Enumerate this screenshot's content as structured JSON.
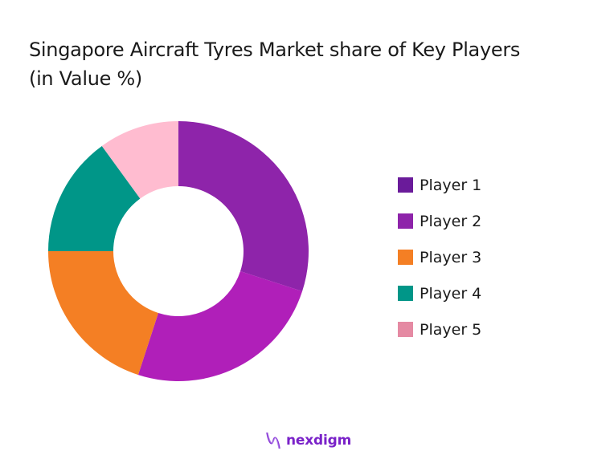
{
  "chart_data": {
    "type": "pie",
    "subtype": "donut",
    "title": "Singapore Aircraft Tyres Market share of Key Players",
    "subtitle": "(in Value %)",
    "categories": [
      "Player 1",
      "Player 2",
      "Player 3",
      "Player 4",
      "Player 5"
    ],
    "values": [
      30,
      25,
      20,
      15,
      10
    ],
    "colors": [
      "#8e24aa",
      "#b01fb9",
      "#f47f24",
      "#009688",
      "#ffbcd0"
    ],
    "legend_colors": [
      "#6a1b9a",
      "#8e24aa",
      "#f47f24",
      "#009688",
      "#e58aa3"
    ],
    "legend_position": "right",
    "start_angle_deg": 0,
    "direction": "clockwise"
  },
  "title": {
    "line1": "Singapore Aircraft Tyres Market share of Key Players",
    "line2": "(in Value %)"
  },
  "legend": {
    "items": [
      {
        "label": "Player 1",
        "color": "#6a1b9a"
      },
      {
        "label": "Player 2",
        "color": "#8e24aa"
      },
      {
        "label": "Player 3",
        "color": "#f47f24"
      },
      {
        "label": "Player 4",
        "color": "#009688"
      },
      {
        "label": "Player 5",
        "color": "#e58aa3"
      }
    ]
  },
  "branding": {
    "logo_text": "nexdigm",
    "logo_icon": "nexdigm-wave-icon"
  }
}
